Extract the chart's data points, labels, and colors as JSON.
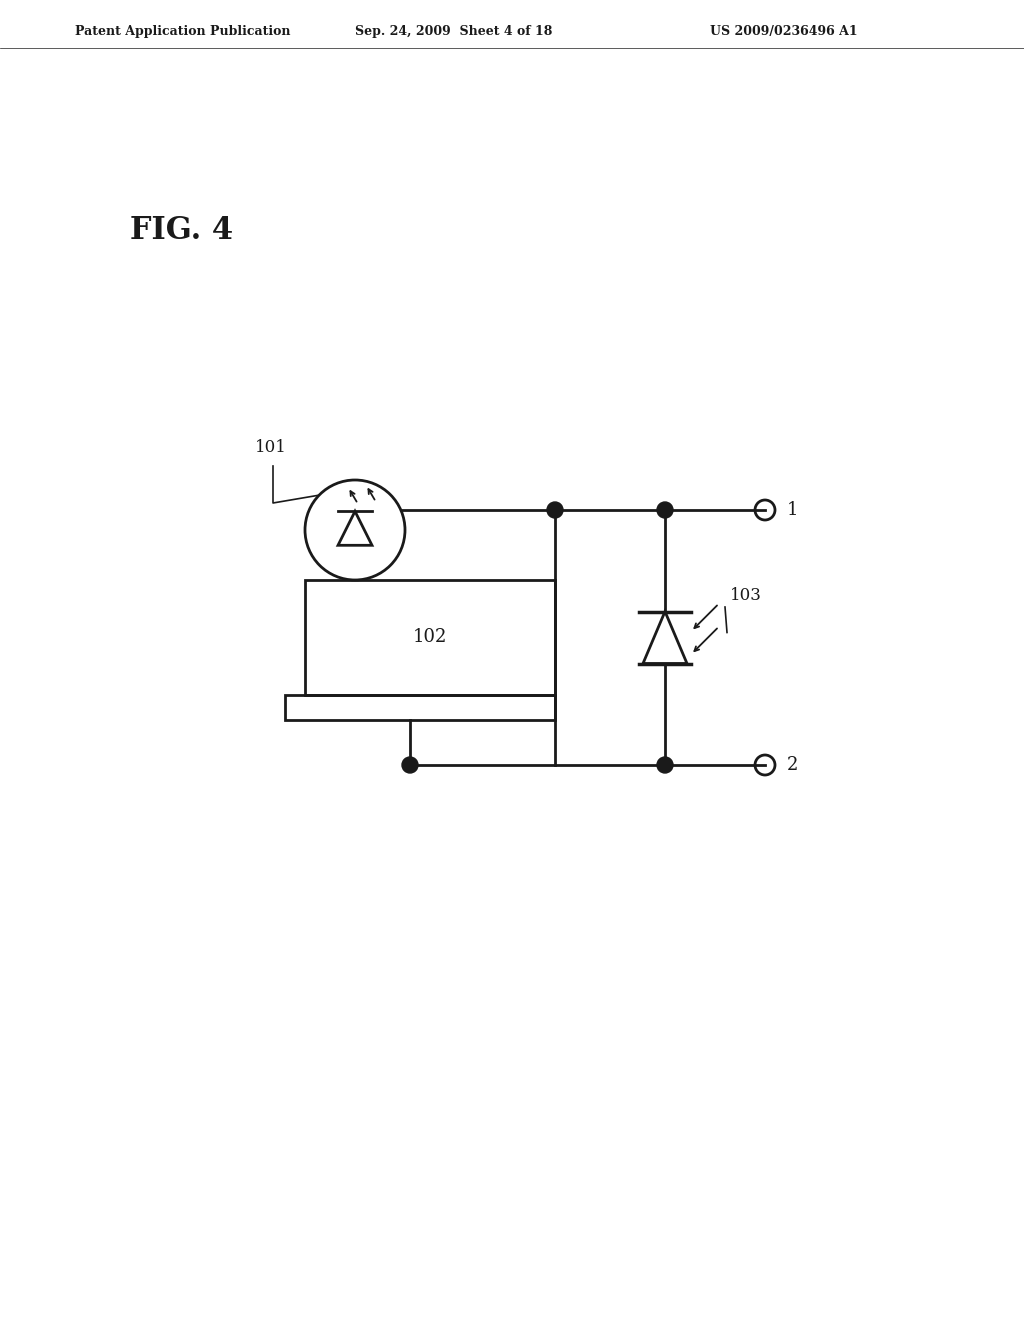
{
  "bg_color": "#ffffff",
  "line_color": "#1a1a1a",
  "line_width": 2.0,
  "header_left": "Patent Application Publication",
  "header_mid": "Sep. 24, 2009  Sheet 4 of 18",
  "header_right": "US 2009/0236496 A1",
  "fig_label": "FIG. 4",
  "label_101": "101",
  "label_102": "102",
  "label_103": "103",
  "label_1": "1",
  "label_2": "2"
}
